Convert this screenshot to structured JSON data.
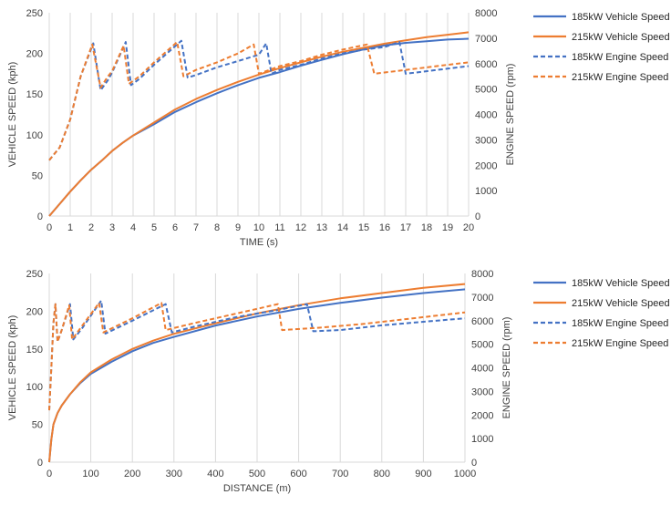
{
  "colors": {
    "blue": "#4472c4",
    "orange": "#ed7d31",
    "grid": "#d9d9d9"
  },
  "chart_data": [
    {
      "type": "line",
      "xlabel": "TIME (s)",
      "ylabel": "VEHICLE SPEED (kph)",
      "y2label": "ENGINE SPEED (rpm)",
      "xlim": [
        0,
        20
      ],
      "ylim": [
        0,
        250
      ],
      "y2lim": [
        0,
        8000
      ],
      "x_ticks": [
        0,
        1,
        2,
        3,
        4,
        5,
        6,
        7,
        8,
        9,
        10,
        11,
        12,
        13,
        14,
        15,
        16,
        17,
        18,
        19,
        20
      ],
      "y_ticks": [
        0,
        50,
        100,
        150,
        200,
        250
      ],
      "y2_ticks": [
        0,
        1000,
        2000,
        3000,
        4000,
        5000,
        6000,
        7000,
        8000
      ],
      "grid": "vertical",
      "legend_position": "right",
      "series": [
        {
          "name": "185kW Vehicle Speed",
          "axis": "y",
          "color": "#4472c4",
          "dash": false,
          "points": [
            [
              0,
              0
            ],
            [
              0.5,
              15
            ],
            [
              1,
              30
            ],
            [
              1.5,
              44
            ],
            [
              2,
              57
            ],
            [
              2.5,
              68
            ],
            [
              3,
              80
            ],
            [
              3.5,
              90
            ],
            [
              4,
              99
            ],
            [
              5,
              113
            ],
            [
              6,
              128
            ],
            [
              7,
              140
            ],
            [
              8,
              151
            ],
            [
              9,
              161
            ],
            [
              10,
              170
            ],
            [
              11,
              177
            ],
            [
              12,
              185
            ],
            [
              13,
              192
            ],
            [
              14,
              199
            ],
            [
              15,
              205
            ],
            [
              16,
              210
            ],
            [
              17,
              213
            ],
            [
              18,
              215
            ],
            [
              19,
              217
            ],
            [
              20,
              218
            ]
          ]
        },
        {
          "name": "215kW Vehicle Speed",
          "axis": "y",
          "color": "#ed7d31",
          "dash": false,
          "points": [
            [
              0,
              0
            ],
            [
              0.5,
              15
            ],
            [
              1,
              30
            ],
            [
              1.5,
              44
            ],
            [
              2,
              57
            ],
            [
              2.5,
              68
            ],
            [
              3,
              80
            ],
            [
              3.5,
              90
            ],
            [
              4,
              99
            ],
            [
              5,
              115
            ],
            [
              6,
              131
            ],
            [
              7,
              144
            ],
            [
              8,
              155
            ],
            [
              9,
              165
            ],
            [
              10,
              174
            ],
            [
              11,
              182
            ],
            [
              12,
              189
            ],
            [
              13,
              196
            ],
            [
              14,
              202
            ],
            [
              15,
              207
            ],
            [
              16,
              212
            ],
            [
              17,
              216
            ],
            [
              18,
              220
            ],
            [
              19,
              223
            ],
            [
              20,
              226
            ]
          ]
        },
        {
          "name": "185kW Engine Speed",
          "axis": "y2",
          "color": "#4472c4",
          "dash": true,
          "points": [
            [
              0,
              2200
            ],
            [
              0.5,
              2700
            ],
            [
              1,
              3800
            ],
            [
              1.5,
              5500
            ],
            [
              2.1,
              6800
            ],
            [
              2.45,
              4950
            ],
            [
              2.8,
              5350
            ],
            [
              3,
              5650
            ],
            [
              3.65,
              6850
            ],
            [
              3.9,
              5150
            ],
            [
              4.3,
              5400
            ],
            [
              5,
              5950
            ],
            [
              6.3,
              6900
            ],
            [
              6.6,
              5450
            ],
            [
              7,
              5550
            ],
            [
              8,
              5850
            ],
            [
              9,
              6100
            ],
            [
              10,
              6350
            ],
            [
              10.35,
              6800
            ],
            [
              10.6,
              5600
            ],
            [
              11,
              5750
            ],
            [
              12,
              5950
            ],
            [
              13,
              6200
            ],
            [
              14,
              6400
            ],
            [
              15,
              6550
            ],
            [
              16,
              6650
            ],
            [
              16.7,
              6850
            ],
            [
              17,
              5600
            ],
            [
              18,
              5700
            ],
            [
              19,
              5800
            ],
            [
              20,
              5900
            ]
          ]
        },
        {
          "name": "215kW Engine Speed",
          "axis": "y2",
          "color": "#ed7d31",
          "dash": true,
          "points": [
            [
              0,
              2200
            ],
            [
              0.5,
              2700
            ],
            [
              1,
              3800
            ],
            [
              1.5,
              5500
            ],
            [
              2.05,
              6750
            ],
            [
              2.45,
              5050
            ],
            [
              2.8,
              5500
            ],
            [
              3,
              5700
            ],
            [
              3.55,
              6700
            ],
            [
              3.8,
              5200
            ],
            [
              4.3,
              5500
            ],
            [
              5,
              6050
            ],
            [
              6.1,
              6850
            ],
            [
              6.4,
              5500
            ],
            [
              7,
              5750
            ],
            [
              8,
              6050
            ],
            [
              9,
              6400
            ],
            [
              9.75,
              6750
            ],
            [
              10,
              5600
            ],
            [
              11,
              5900
            ],
            [
              12,
              6100
            ],
            [
              13,
              6350
            ],
            [
              14,
              6550
            ],
            [
              15.15,
              6750
            ],
            [
              15.5,
              5600
            ],
            [
              16,
              5650
            ],
            [
              17,
              5750
            ],
            [
              18,
              5850
            ],
            [
              19,
              5950
            ],
            [
              20,
              6050
            ]
          ]
        }
      ]
    },
    {
      "type": "line",
      "xlabel": "DISTANCE (m)",
      "ylabel": "VEHICLE SPEED (kph)",
      "y2label": "ENGINE SPEED (rpm)",
      "xlim": [
        0,
        1000
      ],
      "ylim": [
        0,
        250
      ],
      "y2lim": [
        0,
        8000
      ],
      "x_ticks": [
        0,
        100,
        200,
        300,
        400,
        500,
        600,
        700,
        800,
        900,
        1000
      ],
      "y_ticks": [
        0,
        50,
        100,
        150,
        200,
        250
      ],
      "y2_ticks": [
        0,
        1000,
        2000,
        3000,
        4000,
        5000,
        6000,
        7000,
        8000
      ],
      "grid": "vertical",
      "legend_position": "right",
      "series": [
        {
          "name": "185kW Vehicle Speed",
          "axis": "y",
          "color": "#4472c4",
          "dash": false,
          "points": [
            [
              0,
              0
            ],
            [
              5,
              30
            ],
            [
              10,
              50
            ],
            [
              20,
              65
            ],
            [
              30,
              75
            ],
            [
              50,
              90
            ],
            [
              75,
              105
            ],
            [
              100,
              117
            ],
            [
              150,
              133
            ],
            [
              200,
              147
            ],
            [
              250,
              158
            ],
            [
              300,
              166
            ],
            [
              400,
              181
            ],
            [
              500,
              193
            ],
            [
              600,
              203
            ],
            [
              700,
              211
            ],
            [
              800,
              218
            ],
            [
              900,
              224
            ],
            [
              1000,
              229
            ]
          ]
        },
        {
          "name": "215kW Vehicle Speed",
          "axis": "y",
          "color": "#ed7d31",
          "dash": false,
          "points": [
            [
              0,
              0
            ],
            [
              5,
              30
            ],
            [
              10,
              50
            ],
            [
              20,
              65
            ],
            [
              30,
              75
            ],
            [
              50,
              90
            ],
            [
              75,
              106
            ],
            [
              100,
              119
            ],
            [
              150,
              136
            ],
            [
              200,
              150
            ],
            [
              250,
              161
            ],
            [
              300,
              170
            ],
            [
              400,
              184
            ],
            [
              500,
              197
            ],
            [
              600,
              208
            ],
            [
              700,
              217
            ],
            [
              800,
              224
            ],
            [
              900,
              231
            ],
            [
              1000,
              236
            ]
          ]
        },
        {
          "name": "185kW Engine Speed",
          "axis": "y2",
          "color": "#4472c4",
          "dash": true,
          "points": [
            [
              0,
              2200
            ],
            [
              5,
              4000
            ],
            [
              10,
              5900
            ],
            [
              15,
              6700
            ],
            [
              20,
              5100
            ],
            [
              30,
              5600
            ],
            [
              50,
              6700
            ],
            [
              58,
              5200
            ],
            [
              80,
              5700
            ],
            [
              125,
              6850
            ],
            [
              135,
              5450
            ],
            [
              200,
              6000
            ],
            [
              280,
              6700
            ],
            [
              295,
              5500
            ],
            [
              350,
              5750
            ],
            [
              450,
              6150
            ],
            [
              550,
              6450
            ],
            [
              620,
              6700
            ],
            [
              635,
              5550
            ],
            [
              700,
              5600
            ],
            [
              800,
              5800
            ],
            [
              900,
              5950
            ],
            [
              1000,
              6100
            ]
          ]
        },
        {
          "name": "215kW Engine Speed",
          "axis": "y2",
          "color": "#ed7d31",
          "dash": true,
          "points": [
            [
              0,
              2200
            ],
            [
              5,
              4000
            ],
            [
              10,
              5900
            ],
            [
              15,
              6700
            ],
            [
              20,
              5100
            ],
            [
              30,
              5600
            ],
            [
              48,
              6650
            ],
            [
              55,
              5200
            ],
            [
              80,
              5800
            ],
            [
              120,
              6750
            ],
            [
              130,
              5500
            ],
            [
              200,
              6100
            ],
            [
              270,
              6750
            ],
            [
              280,
              5600
            ],
            [
              350,
              5900
            ],
            [
              450,
              6300
            ],
            [
              550,
              6700
            ],
            [
              560,
              5600
            ],
            [
              650,
              5700
            ],
            [
              750,
              5850
            ],
            [
              850,
              6050
            ],
            [
              1000,
              6350
            ]
          ]
        }
      ]
    }
  ]
}
